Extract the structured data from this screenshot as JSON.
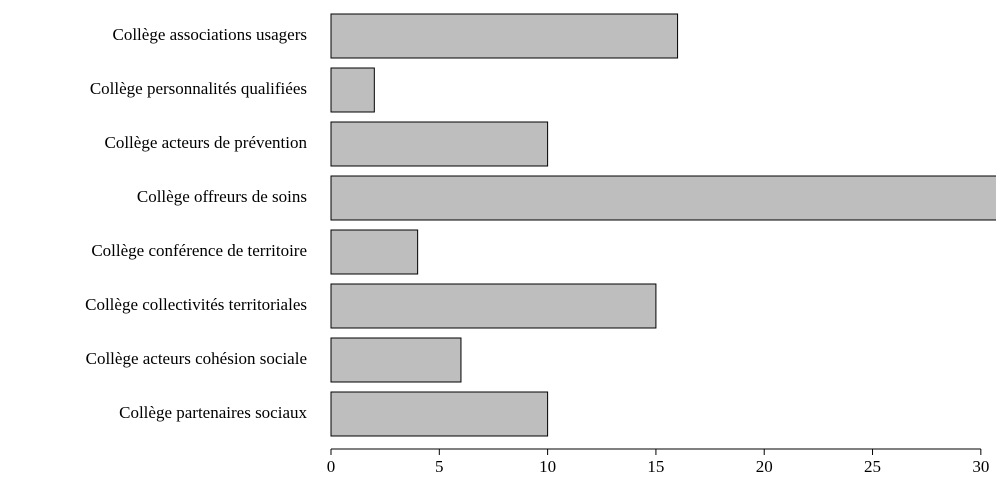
{
  "chart_data": {
    "type": "barh",
    "categories": [
      "Collège associations usagers",
      "Collège personnalités qualifiées",
      "Collège acteurs de prévention",
      "Collège offreurs de soins",
      "Collège conférence de territoire",
      "Collège collectivités territoriales",
      "Collège acteurs cohésion sociale",
      "Collège partenaires sociaux"
    ],
    "values": [
      16,
      2,
      10,
      31,
      4,
      15,
      6,
      10
    ],
    "color": "#bebebe",
    "xlim": [
      0,
      30.7
    ],
    "xticks": [
      0,
      5,
      10,
      15,
      20,
      25,
      30
    ]
  }
}
